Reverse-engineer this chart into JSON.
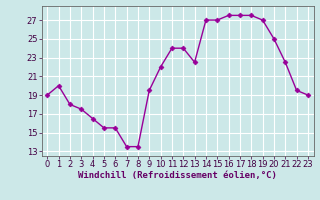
{
  "x": [
    0,
    1,
    2,
    3,
    4,
    5,
    6,
    7,
    8,
    9,
    10,
    11,
    12,
    13,
    14,
    15,
    16,
    17,
    18,
    19,
    20,
    21,
    22,
    23
  ],
  "y": [
    19,
    20,
    18,
    17.5,
    16.5,
    15.5,
    15.5,
    13.5,
    13.5,
    19.5,
    22,
    24,
    24,
    22.5,
    27,
    27,
    27.5,
    27.5,
    27.5,
    27,
    25,
    22.5,
    19.5,
    19
  ],
  "line_color": "#990099",
  "marker": "D",
  "markersize": 2.5,
  "linewidth": 1.0,
  "bg_color": "#cce8e8",
  "grid_color": "#aad4d4",
  "xlabel": "Windchill (Refroidissement éolien,°C)",
  "xlabel_fontsize": 6.5,
  "tick_fontsize": 6,
  "xlim": [
    -0.5,
    23.5
  ],
  "ylim": [
    12.5,
    28.5
  ],
  "yticks": [
    13,
    15,
    17,
    19,
    21,
    23,
    25,
    27
  ],
  "xticks": [
    0,
    1,
    2,
    3,
    4,
    5,
    6,
    7,
    8,
    9,
    10,
    11,
    12,
    13,
    14,
    15,
    16,
    17,
    18,
    19,
    20,
    21,
    22,
    23
  ]
}
